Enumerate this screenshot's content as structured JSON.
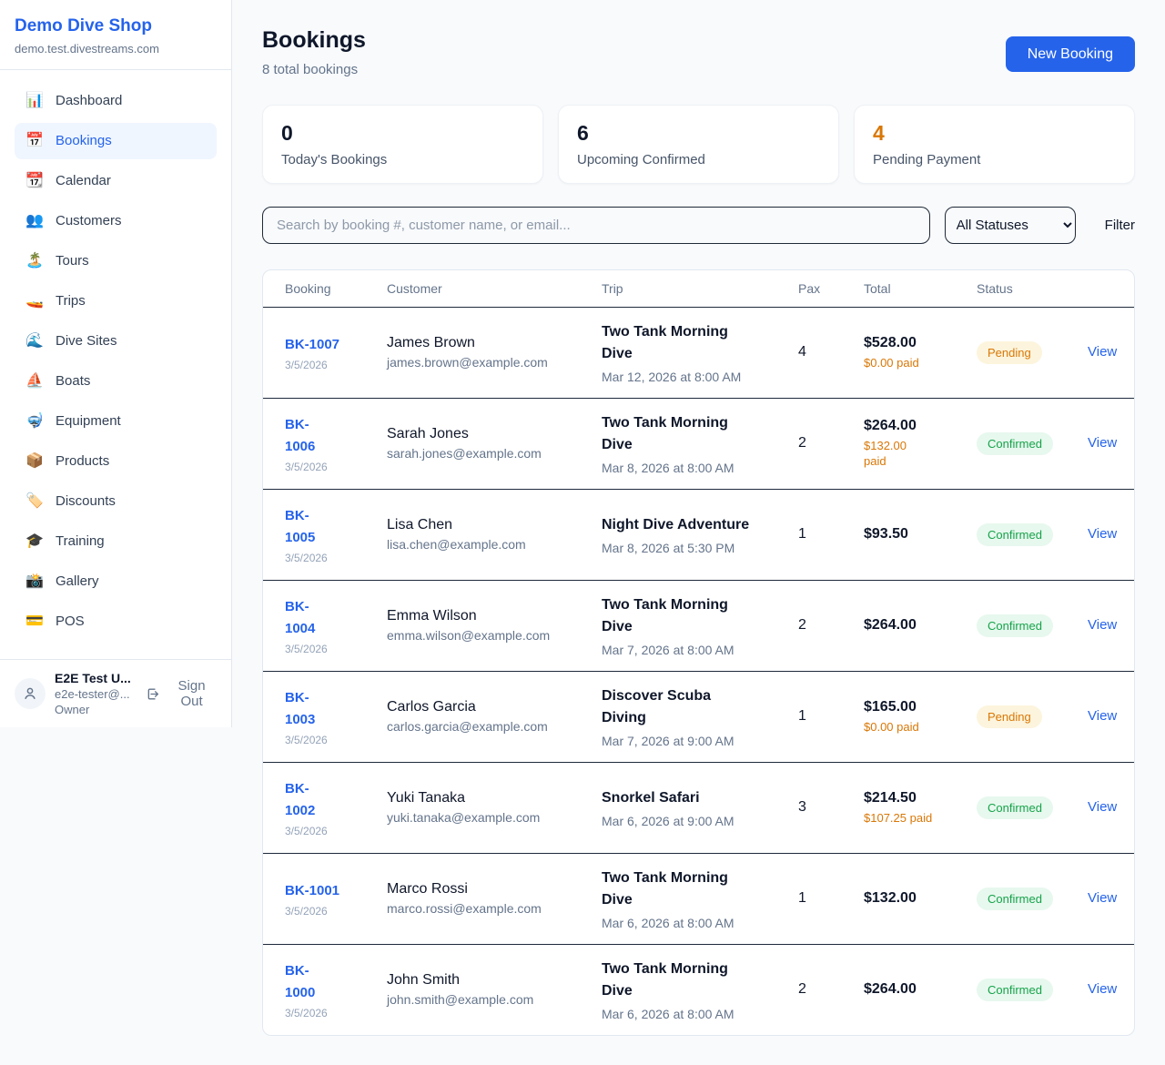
{
  "sidebar": {
    "shop_name": "Demo Dive Shop",
    "domain": "demo.test.divestreams.com",
    "items": [
      {
        "label": "Dashboard",
        "icon": "📊",
        "active": false
      },
      {
        "label": "Bookings",
        "icon": "📅",
        "active": true
      },
      {
        "label": "Calendar",
        "icon": "📆",
        "active": false
      },
      {
        "label": "Customers",
        "icon": "👥",
        "active": false
      },
      {
        "label": "Tours",
        "icon": "🏝️",
        "active": false
      },
      {
        "label": "Trips",
        "icon": "🚤",
        "active": false
      },
      {
        "label": "Dive Sites",
        "icon": "🌊",
        "active": false
      },
      {
        "label": "Boats",
        "icon": "⛵",
        "active": false
      },
      {
        "label": "Equipment",
        "icon": "🤿",
        "active": false
      },
      {
        "label": "Products",
        "icon": "📦",
        "active": false
      },
      {
        "label": "Discounts",
        "icon": "🏷️",
        "active": false
      },
      {
        "label": "Training",
        "icon": "🎓",
        "active": false
      },
      {
        "label": "Gallery",
        "icon": "📸",
        "active": false
      },
      {
        "label": "POS",
        "icon": "💳",
        "active": false
      }
    ],
    "user": {
      "name": "E2E Test U...",
      "email": "e2e-tester@...",
      "role": "Owner",
      "sign_out_label": "Sign Out"
    }
  },
  "header": {
    "title": "Bookings",
    "subtitle": "8 total bookings",
    "new_booking_label": "New Booking"
  },
  "stats": [
    {
      "value": "0",
      "label": "Today's Bookings",
      "value_color": "#0f172a"
    },
    {
      "value": "6",
      "label": "Upcoming Confirmed",
      "value_color": "#0f172a"
    },
    {
      "value": "4",
      "label": "Pending Payment",
      "value_color": "#d97706"
    }
  ],
  "filters": {
    "search_placeholder": "Search by booking #, customer name, or email...",
    "status_selected": "All Statuses",
    "filter_label": "Filter"
  },
  "table": {
    "columns": [
      "Booking",
      "Customer",
      "Trip",
      "Pax",
      "Total",
      "Status",
      ""
    ],
    "rows": [
      {
        "id": "BK-1007",
        "date": "3/5/2026",
        "customer": "James Brown",
        "email": "james.brown@example.com",
        "trip": "Two Tank Morning\nDive",
        "trip_datetime": "Mar 12, 2026 at 8:00 AM",
        "pax": "4",
        "total": "$528.00",
        "paid": "$0.00 paid",
        "status": "Pending",
        "action": "View"
      },
      {
        "id": "BK-\n1006",
        "date": "3/5/2026",
        "customer": "Sarah Jones",
        "email": "sarah.jones@example.com",
        "trip": "Two Tank Morning\nDive",
        "trip_datetime": "Mar 8, 2026 at 8:00 AM",
        "pax": "2",
        "total": "$264.00",
        "paid": "$132.00\npaid",
        "status": "Confirmed",
        "action": "View"
      },
      {
        "id": "BK-\n1005",
        "date": "3/5/2026",
        "customer": "Lisa Chen",
        "email": "lisa.chen@example.com",
        "trip": "Night Dive Adventure",
        "trip_datetime": "Mar 8, 2026 at 5:30 PM",
        "pax": "1",
        "total": "$93.50",
        "paid": null,
        "status": "Confirmed",
        "action": "View"
      },
      {
        "id": "BK-\n1004",
        "date": "3/5/2026",
        "customer": "Emma Wilson",
        "email": "emma.wilson@example.com",
        "trip": "Two Tank Morning\nDive",
        "trip_datetime": "Mar 7, 2026 at 8:00 AM",
        "pax": "2",
        "total": "$264.00",
        "paid": null,
        "status": "Confirmed",
        "action": "View"
      },
      {
        "id": "BK-\n1003",
        "date": "3/5/2026",
        "customer": "Carlos Garcia",
        "email": "carlos.garcia@example.com",
        "trip": "Discover Scuba\nDiving",
        "trip_datetime": "Mar 7, 2026 at 9:00 AM",
        "pax": "1",
        "total": "$165.00",
        "paid": "$0.00 paid",
        "status": "Pending",
        "action": "View"
      },
      {
        "id": "BK-\n1002",
        "date": "3/5/2026",
        "customer": "Yuki Tanaka",
        "email": "yuki.tanaka@example.com",
        "trip": "Snorkel Safari",
        "trip_datetime": "Mar 6, 2026 at 9:00 AM",
        "pax": "3",
        "total": "$214.50",
        "paid": "$107.25 paid",
        "status": "Confirmed",
        "action": "View"
      },
      {
        "id": "BK-1001",
        "date": "3/5/2026",
        "customer": "Marco Rossi",
        "email": "marco.rossi@example.com",
        "trip": "Two Tank Morning\nDive",
        "trip_datetime": "Mar 6, 2026 at 8:00 AM",
        "pax": "1",
        "total": "$132.00",
        "paid": null,
        "status": "Confirmed",
        "action": "View"
      },
      {
        "id": "BK-\n1000",
        "date": "3/5/2026",
        "customer": "John Smith",
        "email": "john.smith@example.com",
        "trip": "Two Tank Morning\nDive",
        "trip_datetime": "Mar 6, 2026 at 8:00 AM",
        "pax": "2",
        "total": "$264.00",
        "paid": null,
        "status": "Confirmed",
        "action": "View"
      }
    ]
  },
  "colors": {
    "accent": "#2563eb",
    "pending_text": "#d97706",
    "pending_bg": "#fcf4dc",
    "confirmed_text": "#16a34a",
    "confirmed_bg": "#e7f8ee",
    "paid_text": "#d97706",
    "page_bg": "#f8fafc",
    "row_divider": "#1e293b"
  }
}
